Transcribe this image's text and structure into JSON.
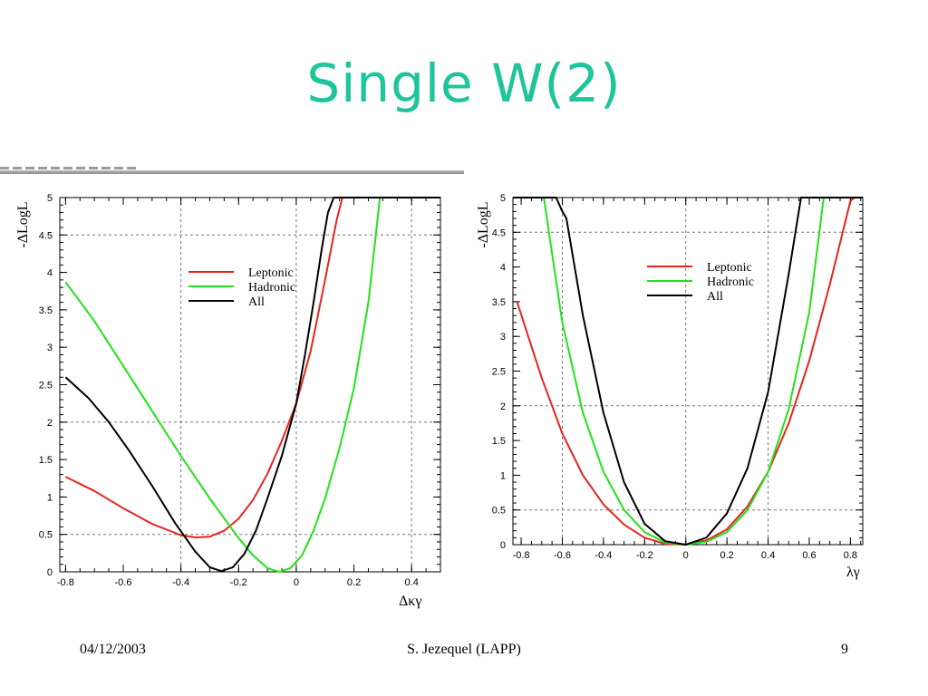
{
  "slide": {
    "title": "Single W(2)",
    "footer_date": "04/12/2003",
    "footer_author": "S. Jezequel (LAPP)",
    "footer_page": "9"
  },
  "colors": {
    "title": "#1ec59a",
    "leptonic": "#e8231c",
    "hadronic": "#21e21a",
    "all": "#000000"
  },
  "chart_data": [
    {
      "type": "line",
      "xlabel": "Δκγ",
      "ylabel": "-ΔLogL",
      "xlim": [
        -0.82,
        0.5
      ],
      "ylim": [
        0,
        5
      ],
      "xticks": [
        -0.8,
        -0.6,
        -0.4,
        -0.2,
        0,
        0.2,
        0.4
      ],
      "xtick_labels": [
        "-0.8",
        "-0.6",
        "-0.4",
        "-0.2",
        "0",
        "0.2",
        "0.4"
      ],
      "yticks": [
        0,
        0.5,
        1,
        1.5,
        2,
        2.5,
        3,
        3.5,
        4,
        4.5,
        5
      ],
      "ytick_labels": [
        "0",
        "0.5",
        "1",
        "1.5",
        "2",
        "2.5",
        "3",
        "3.5",
        "4",
        "4.5",
        "5"
      ],
      "grid": "dashed at x=-0.4, 0, 0.4 and y=0.5, 2, 4.5",
      "legend_position": "top-center",
      "series": [
        {
          "name": "Leptonic",
          "color": "#e8231c",
          "x": [
            -0.8,
            -0.7,
            -0.6,
            -0.5,
            -0.4,
            -0.35,
            -0.3,
            -0.25,
            -0.2,
            -0.15,
            -0.1,
            -0.05,
            0,
            0.05,
            0.1,
            0.14,
            0.16,
            0.5
          ],
          "y": [
            1.27,
            1.08,
            0.85,
            0.64,
            0.49,
            0.46,
            0.47,
            0.55,
            0.71,
            0.96,
            1.31,
            1.75,
            2.25,
            2.95,
            3.9,
            4.7,
            5.0,
            5.0
          ]
        },
        {
          "name": "Hadronic",
          "color": "#21e21a",
          "x": [
            -0.8,
            -0.7,
            -0.6,
            -0.5,
            -0.4,
            -0.3,
            -0.2,
            -0.15,
            -0.1,
            -0.06,
            -0.02,
            0.02,
            0.06,
            0.1,
            0.15,
            0.2,
            0.25,
            0.29,
            0.5
          ],
          "y": [
            3.87,
            3.35,
            2.75,
            2.15,
            1.55,
            0.98,
            0.45,
            0.22,
            0.05,
            0.0,
            0.05,
            0.22,
            0.55,
            0.98,
            1.65,
            2.45,
            3.6,
            5.0,
            5.0
          ]
        },
        {
          "name": "All",
          "color": "#000000",
          "x": [
            -0.8,
            -0.72,
            -0.65,
            -0.58,
            -0.5,
            -0.42,
            -0.35,
            -0.3,
            -0.26,
            -0.22,
            -0.18,
            -0.14,
            -0.1,
            -0.05,
            0,
            0.03,
            0.06,
            0.09,
            0.11,
            0.13,
            0.5
          ],
          "y": [
            2.6,
            2.32,
            2.0,
            1.62,
            1.15,
            0.65,
            0.27,
            0.06,
            0.01,
            0.06,
            0.24,
            0.55,
            0.98,
            1.55,
            2.25,
            2.9,
            3.6,
            4.35,
            4.8,
            5.0,
            5.0
          ]
        }
      ]
    },
    {
      "type": "line",
      "xlabel": "λγ",
      "ylabel": "-ΔLogL",
      "xlim": [
        -0.84,
        0.86
      ],
      "ylim": [
        0,
        5
      ],
      "xticks": [
        -0.8,
        -0.6,
        -0.4,
        -0.2,
        0,
        0.2,
        0.4,
        0.6,
        0.8
      ],
      "xtick_labels": [
        "-0.8",
        "-0.6",
        "-0.4",
        "-0.2",
        "0",
        "0.2",
        "0.4",
        "0.6",
        "0.8"
      ],
      "yticks": [
        0,
        0.5,
        1,
        1.5,
        2,
        2.5,
        3,
        3.5,
        4,
        4.5,
        5
      ],
      "ytick_labels": [
        "0",
        "0.5",
        "1",
        "1.5",
        "2",
        "2.5",
        "3",
        "3.5",
        "4",
        "4.5",
        "5"
      ],
      "grid": "dashed at x=-0.6, 0, 0.4 and y=0.5, 2, 4.5",
      "legend_position": "top-right",
      "series": [
        {
          "name": "Leptonic",
          "color": "#e8231c",
          "x": [
            -0.82,
            -0.7,
            -0.6,
            -0.5,
            -0.4,
            -0.3,
            -0.2,
            -0.1,
            0,
            0.1,
            0.2,
            0.3,
            0.4,
            0.5,
            0.6,
            0.7,
            0.8,
            0.82
          ],
          "y": [
            3.5,
            2.4,
            1.6,
            1.0,
            0.58,
            0.29,
            0.1,
            0.01,
            0.0,
            0.06,
            0.22,
            0.55,
            1.05,
            1.75,
            2.65,
            3.75,
            4.95,
            5.0
          ]
        },
        {
          "name": "Hadronic",
          "color": "#21e21a",
          "x": [
            -0.84,
            -0.69,
            -0.65,
            -0.6,
            -0.5,
            -0.4,
            -0.3,
            -0.2,
            -0.1,
            0,
            0.1,
            0.2,
            0.3,
            0.4,
            0.5,
            0.6,
            0.67,
            0.86
          ],
          "y": [
            5.0,
            5.0,
            4.2,
            3.2,
            1.9,
            1.05,
            0.5,
            0.18,
            0.03,
            0.0,
            0.04,
            0.18,
            0.5,
            1.05,
            1.95,
            3.35,
            5.0,
            5.0
          ]
        },
        {
          "name": "All",
          "color": "#000000",
          "x": [
            -0.84,
            -0.63,
            -0.6,
            -0.58,
            -0.5,
            -0.4,
            -0.3,
            -0.2,
            -0.1,
            0,
            0.1,
            0.2,
            0.3,
            0.4,
            0.5,
            0.56,
            0.86
          ],
          "y": [
            5.0,
            5.0,
            4.8,
            4.7,
            3.3,
            1.9,
            0.9,
            0.3,
            0.05,
            0.0,
            0.1,
            0.45,
            1.1,
            2.2,
            3.9,
            5.0,
            5.0
          ]
        }
      ]
    }
  ]
}
